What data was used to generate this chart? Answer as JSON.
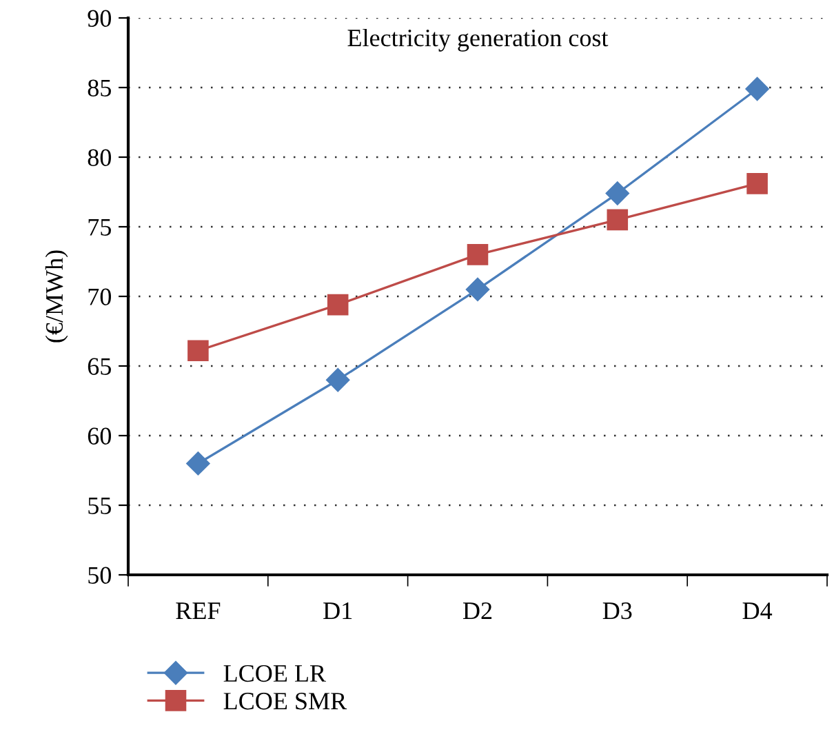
{
  "chart_data": {
    "type": "line",
    "title": "Electricity generation cost",
    "ylabel": "(€/MWh)",
    "categories": [
      "REF",
      "D1",
      "D2",
      "D3",
      "D4"
    ],
    "series": [
      {
        "name": "LCOE LR",
        "color": "#4a7ebb",
        "marker": "diamond",
        "values": [
          58,
          64,
          70.5,
          77.4,
          84.9
        ]
      },
      {
        "name": "LCOE SMR",
        "color": "#be4b48",
        "marker": "square",
        "values": [
          66.1,
          69.4,
          73.0,
          75.5,
          78.1
        ]
      }
    ],
    "ylim": [
      50,
      90
    ],
    "yticks": [
      50,
      55,
      60,
      65,
      70,
      75,
      80,
      85,
      90
    ],
    "grid": "y",
    "legend": "bottom left",
    "line_style": "solid"
  }
}
